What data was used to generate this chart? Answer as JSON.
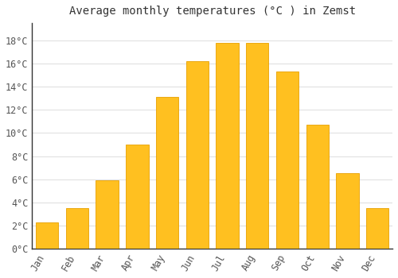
{
  "title": "Average monthly temperatures (°C ) in Zemst",
  "months": [
    "Jan",
    "Feb",
    "Mar",
    "Apr",
    "May",
    "Jun",
    "Jul",
    "Aug",
    "Sep",
    "Oct",
    "Nov",
    "Dec"
  ],
  "temperatures": [
    2.3,
    3.5,
    5.9,
    9.0,
    13.1,
    16.2,
    17.8,
    17.8,
    15.3,
    10.7,
    6.5,
    3.5
  ],
  "bar_color": "#FFC020",
  "bar_edge_color": "#E8A000",
  "background_color": "#FFFFFF",
  "grid_color": "#DDDDDD",
  "text_color": "#555555",
  "ylim": [
    0,
    19.5
  ],
  "yticks": [
    0,
    2,
    4,
    6,
    8,
    10,
    12,
    14,
    16,
    18
  ],
  "title_fontsize": 10,
  "tick_fontsize": 8.5,
  "bar_width": 0.75
}
